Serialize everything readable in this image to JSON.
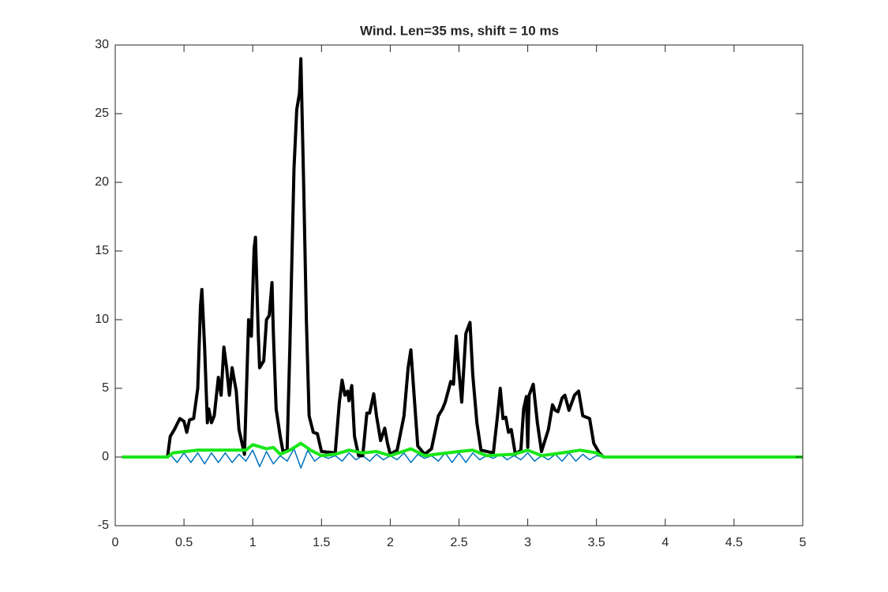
{
  "chart_data": {
    "type": "line",
    "title": "Wind. Len=35 ms, shift = 10 ms",
    "xlim": [
      0,
      5
    ],
    "xticks": [
      0,
      0.5,
      1,
      1.5,
      2,
      2.5,
      3,
      3.5,
      4,
      4.5,
      5
    ],
    "ylim": [
      -5,
      30
    ],
    "yticks": [
      -5,
      0,
      5,
      10,
      15,
      20,
      25,
      30
    ],
    "series": [
      {
        "color": "#0072bd",
        "width": 1.5,
        "x": [
          0.05,
          0.38,
          0.4,
          0.45,
          0.5,
          0.55,
          0.6,
          0.65,
          0.7,
          0.75,
          0.8,
          0.85,
          0.9,
          0.95,
          1.0,
          1.05,
          1.1,
          1.15,
          1.2,
          1.25,
          1.3,
          1.35,
          1.4,
          1.45,
          1.5,
          1.55,
          1.6,
          1.65,
          1.7,
          1.75,
          1.8,
          1.85,
          1.9,
          1.95,
          2.0,
          2.05,
          2.1,
          2.15,
          2.2,
          2.25,
          2.3,
          2.35,
          2.4,
          2.45,
          2.5,
          2.55,
          2.6,
          2.65,
          2.7,
          2.75,
          2.8,
          2.85,
          2.9,
          2.95,
          3.0,
          3.05,
          3.1,
          3.15,
          3.2,
          3.25,
          3.3,
          3.35,
          3.4,
          3.45,
          3.5,
          3.55,
          5.0
        ],
        "values": [
          0,
          0,
          0.2,
          -0.4,
          0.3,
          -0.4,
          0.3,
          -0.5,
          0.3,
          -0.4,
          0.3,
          -0.4,
          0.2,
          -0.3,
          0.5,
          -0.7,
          0.4,
          -0.5,
          0.1,
          -0.3,
          0.6,
          -0.8,
          0.5,
          -0.3,
          0.1,
          -0.1,
          0.1,
          -0.3,
          0.3,
          -0.2,
          0.1,
          -0.3,
          0.2,
          -0.2,
          0.1,
          -0.2,
          0.3,
          -0.4,
          0.2,
          -0.1,
          0.1,
          -0.3,
          0.3,
          -0.4,
          0.3,
          -0.4,
          0.3,
          -0.2,
          0.1,
          -0.1,
          0.2,
          -0.2,
          0.1,
          -0.2,
          0.3,
          -0.3,
          0.1,
          -0.2,
          0.2,
          -0.3,
          0.3,
          -0.3,
          0.2,
          -0.2,
          0.1,
          0,
          0
        ]
      },
      {
        "color": "#000000",
        "width": 4,
        "x": [
          0.05,
          0.38,
          0.4,
          0.43,
          0.47,
          0.5,
          0.52,
          0.54,
          0.57,
          0.6,
          0.62,
          0.63,
          0.65,
          0.67,
          0.68,
          0.7,
          0.72,
          0.75,
          0.77,
          0.79,
          0.81,
          0.83,
          0.85,
          0.88,
          0.9,
          0.94,
          0.97,
          0.99,
          1.01,
          1.02,
          1.04,
          1.05,
          1.08,
          1.1,
          1.12,
          1.14,
          1.15,
          1.17,
          1.2,
          1.22,
          1.25,
          1.27,
          1.3,
          1.32,
          1.34,
          1.35,
          1.37,
          1.39,
          1.41,
          1.44,
          1.47,
          1.5,
          1.6,
          1.63,
          1.65,
          1.67,
          1.69,
          1.7,
          1.72,
          1.74,
          1.77,
          1.8,
          1.83,
          1.85,
          1.88,
          1.9,
          1.93,
          1.96,
          1.98,
          2.0,
          2.05,
          2.1,
          2.13,
          2.15,
          2.17,
          2.2,
          2.25,
          2.3,
          2.35,
          2.38,
          2.4,
          2.44,
          2.46,
          2.48,
          2.5,
          2.52,
          2.55,
          2.58,
          2.6,
          2.63,
          2.66,
          2.75,
          2.78,
          2.8,
          2.82,
          2.84,
          2.86,
          2.88,
          2.91,
          2.95,
          2.97,
          2.99,
          3.0,
          3.01,
          3.04,
          3.07,
          3.1,
          3.15,
          3.18,
          3.2,
          3.22,
          3.25,
          3.27,
          3.3,
          3.34,
          3.37,
          3.4,
          3.45,
          3.48,
          3.52,
          3.55,
          5.0
        ],
        "values": [
          0,
          0,
          1.5,
          2,
          2.8,
          2.6,
          1.8,
          2.7,
          2.8,
          5,
          11,
          12.2,
          8,
          2.5,
          3.5,
          2.5,
          3,
          5.8,
          4.5,
          8,
          6.5,
          4.5,
          6.5,
          4.8,
          2,
          0.2,
          10,
          8.8,
          15.2,
          16,
          9,
          6.5,
          7,
          10,
          10.3,
          12.7,
          9,
          3.5,
          1.5,
          0.4,
          0.5,
          8,
          21,
          25.3,
          26.5,
          29,
          20,
          10,
          3,
          1.8,
          1.7,
          0.4,
          0.3,
          4,
          5.6,
          4.5,
          4.8,
          4.1,
          5.2,
          1.5,
          0.1,
          0.1,
          3.2,
          3.2,
          4.6,
          3,
          1.2,
          2.1,
          1,
          0.2,
          0.5,
          3,
          6.5,
          7.8,
          5,
          0.8,
          0.2,
          0.6,
          3,
          3.5,
          4,
          5.5,
          5.3,
          8.8,
          6.2,
          4,
          9,
          9.8,
          6,
          2.5,
          0.5,
          0.3,
          3,
          5,
          2.8,
          2.9,
          1.8,
          2,
          0.2,
          0.5,
          3.5,
          4.4,
          0.7,
          4.5,
          5.3,
          2.5,
          0.4,
          2,
          3.8,
          3.4,
          3.3,
          4.3,
          4.5,
          3.4,
          4.5,
          4.8,
          3,
          2.8,
          1,
          0.3,
          0,
          0
        ]
      },
      {
        "color": "#19e619",
        "width": 4,
        "x": [
          0.05,
          0.38,
          0.42,
          0.6,
          0.8,
          0.95,
          1.0,
          1.1,
          1.15,
          1.2,
          1.27,
          1.35,
          1.42,
          1.5,
          1.6,
          1.7,
          1.8,
          1.9,
          2.0,
          2.15,
          2.25,
          2.5,
          2.6,
          2.7,
          2.9,
          3.0,
          3.1,
          3.25,
          3.38,
          3.5,
          3.55,
          5.0
        ],
        "values": [
          0,
          0,
          0.3,
          0.5,
          0.5,
          0.5,
          0.9,
          0.6,
          0.7,
          0.2,
          0.5,
          1,
          0.5,
          0.1,
          0.2,
          0.5,
          0.3,
          0.4,
          0.1,
          0.6,
          0.1,
          0.4,
          0.5,
          0.1,
          0.2,
          0.5,
          0.1,
          0.3,
          0.5,
          0.3,
          0,
          0
        ]
      }
    ]
  }
}
